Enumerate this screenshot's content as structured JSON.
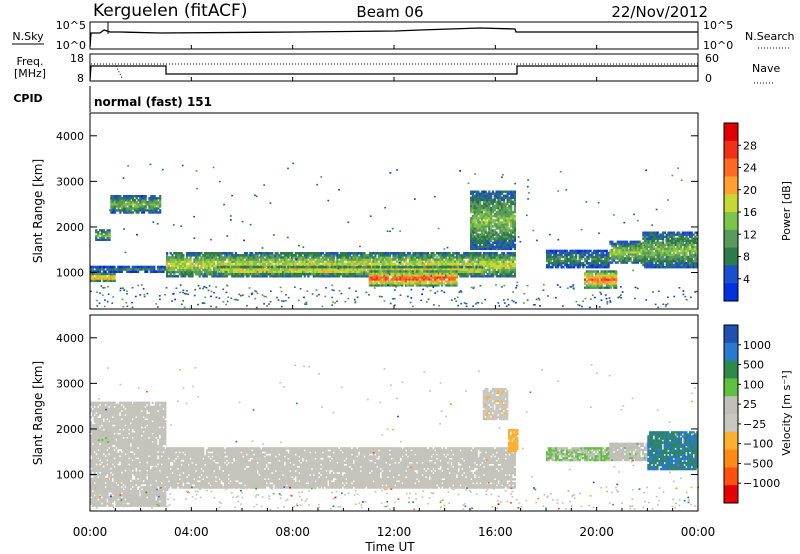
{
  "header": {
    "station": "Kerguelen (fitACF)",
    "beam": "Beam 06",
    "date": "22/Nov/2012"
  },
  "panels": {
    "nsky": {
      "label": "N.Sky",
      "ticks": [
        "10^5",
        "10^0"
      ],
      "right_ticks": [
        "10^5",
        "10^0"
      ],
      "right_label": "N.Search"
    },
    "freq": {
      "label_line1": "Freq.",
      "label_line2": "[MHz]",
      "ticks": [
        "18",
        "8"
      ],
      "right_ticks": [
        "60",
        "0"
      ],
      "right_label": "Nave"
    },
    "cpid": {
      "label": "CPID",
      "value": "normal (fast) 151"
    }
  },
  "colors": {
    "power": [
      "#0030e0",
      "#1c4fd0",
      "#2f7a4a",
      "#5a9a5a",
      "#7fc44a",
      "#c8d832",
      "#ffa030",
      "#ff6a20",
      "#f03018",
      "#e00000"
    ],
    "velocity": [
      "#2050b0",
      "#2a78d0",
      "#2e8a4a",
      "#60c040",
      "#c0c0b8",
      "#c8c8c0",
      "#ffb030",
      "#ff8a18",
      "#ff5010",
      "#e80000"
    ],
    "velocity_gray": "#c4c4bc"
  },
  "chart_data": [
    {
      "type": "heatmap",
      "title": "Power",
      "ylabel": "Slant Range [km]",
      "xlabel": "Time UT",
      "x_ticks": [
        "00:00",
        "04:00",
        "08:00",
        "12:00",
        "16:00",
        "20:00",
        "00:00"
      ],
      "y_ticks": [
        "4000",
        "3000",
        "2000",
        "1000"
      ],
      "ylim": [
        200,
        4500
      ],
      "xlim": [
        0,
        24
      ],
      "colorbar": {
        "label": "Power [dB]",
        "ticks": [
          "28",
          "24",
          "20",
          "16",
          "12",
          "8",
          "4"
        ],
        "range": [
          0,
          30
        ]
      },
      "features": [
        {
          "t0": 0.0,
          "t1": 1.0,
          "r0": 800,
          "r1": 1000,
          "level": 26
        },
        {
          "t0": 0.0,
          "t1": 3.0,
          "r0": 1000,
          "r1": 1150,
          "level": 10
        },
        {
          "t0": 0.2,
          "t1": 0.8,
          "r0": 1700,
          "r1": 1950,
          "level": 16
        },
        {
          "t0": 0.8,
          "t1": 2.8,
          "r0": 2300,
          "r1": 2700,
          "level": 14
        },
        {
          "t0": 3.0,
          "t1": 16.8,
          "r0": 900,
          "r1": 1450,
          "level": 18
        },
        {
          "t0": 5.0,
          "t1": 15.5,
          "r0": 950,
          "r1": 1150,
          "level": 24
        },
        {
          "t0": 11.0,
          "t1": 14.5,
          "r0": 700,
          "r1": 1050,
          "level": 28
        },
        {
          "t0": 15.0,
          "t1": 16.8,
          "r0": 1500,
          "r1": 2800,
          "level": 14
        },
        {
          "t0": 19.5,
          "t1": 20.8,
          "r0": 650,
          "r1": 1050,
          "level": 26
        },
        {
          "t0": 18.0,
          "t1": 20.5,
          "r0": 1100,
          "r1": 1500,
          "level": 10
        },
        {
          "t0": 20.5,
          "t1": 21.8,
          "r0": 1200,
          "r1": 1700,
          "level": 16
        },
        {
          "t0": 21.8,
          "t1": 24.0,
          "r0": 1100,
          "r1": 1900,
          "level": 14
        }
      ]
    },
    {
      "type": "heatmap",
      "title": "Velocity",
      "ylabel": "Slant Range [km]",
      "xlabel": "Time UT",
      "x_ticks": [
        "00:00",
        "04:00",
        "08:00",
        "12:00",
        "16:00",
        "20:00",
        "00:00"
      ],
      "y_ticks": [
        "4000",
        "3000",
        "2000",
        "1000"
      ],
      "ylim": [
        200,
        4500
      ],
      "xlim": [
        0,
        24
      ],
      "colorbar": {
        "label": "Velocity [m s⁻¹]",
        "ticks": [
          "1000",
          "500",
          "100",
          "25",
          "−25",
          "−100",
          "−500",
          "−1000"
        ],
        "range": [
          -1000,
          1000
        ]
      },
      "features": [
        {
          "t0": 0.0,
          "t1": 3.0,
          "r0": 300,
          "r1": 2600,
          "value": 0
        },
        {
          "t0": 0.3,
          "t1": 0.9,
          "r0": 1700,
          "r1": 1950,
          "value": 150
        },
        {
          "t0": 3.0,
          "t1": 16.8,
          "r0": 700,
          "r1": 1600,
          "value": 0
        },
        {
          "t0": 16.5,
          "t1": 16.9,
          "r0": 1500,
          "r1": 2000,
          "value": -300
        },
        {
          "t0": 15.5,
          "t1": 16.5,
          "r0": 2200,
          "r1": 2900,
          "value": -150
        },
        {
          "t0": 18.0,
          "t1": 20.5,
          "r0": 1300,
          "r1": 1600,
          "value": 200
        },
        {
          "t0": 20.5,
          "t1": 22.0,
          "r0": 1300,
          "r1": 1700,
          "value": 150
        },
        {
          "t0": 22.0,
          "t1": 24.0,
          "r0": 1100,
          "r1": 1950,
          "value": 600
        }
      ]
    }
  ]
}
